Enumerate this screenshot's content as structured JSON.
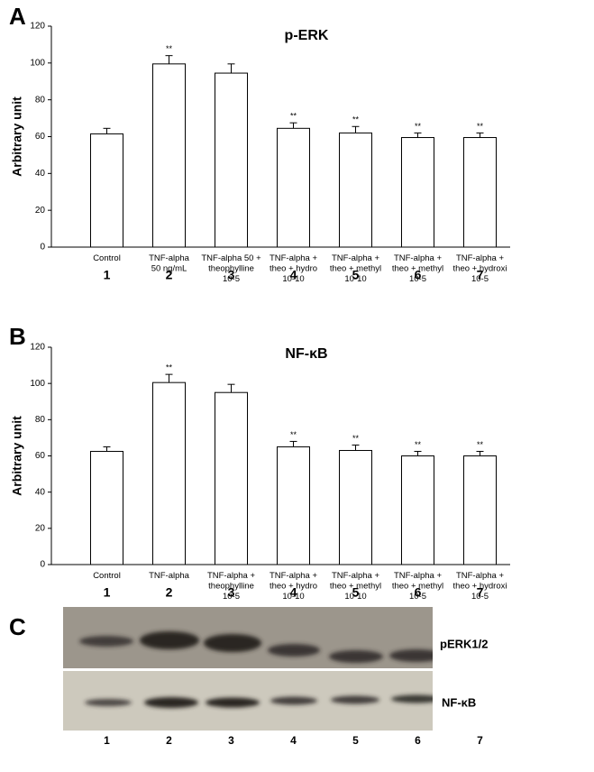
{
  "chart_data": [
    {
      "type": "bar",
      "panel": "A",
      "title": "p-ERK",
      "ylabel": "Arbitrary unit",
      "categories": [
        [
          "Control"
        ],
        [
          "TNF-alpha",
          "50 ng/mL"
        ],
        [
          "TNF-alpha 50 +",
          "theophylline",
          "10-5"
        ],
        [
          "TNF-alpha +",
          "theo + hydro",
          "10-10"
        ],
        [
          "TNF-alpha +",
          "theo + methyl",
          "10-10"
        ],
        [
          "TNF-alpha +",
          "theo + methyl",
          "10-5"
        ],
        [
          "TNF-alpha +",
          "theo + hydroxi",
          "10-5"
        ]
      ],
      "lane_labels": [
        "1",
        "2",
        "3",
        "4",
        "5",
        "6",
        "7"
      ],
      "values": [
        61.5,
        99.5,
        94.5,
        64.5,
        62,
        59.5,
        59.5
      ],
      "errors": [
        3,
        4.5,
        5,
        3,
        3.5,
        2.5,
        2.5
      ],
      "annotations": [
        null,
        "**",
        null,
        "**",
        "**",
        "**",
        "**"
      ],
      "color": "#ffffff",
      "ylim": [
        0,
        120
      ],
      "yticks": [
        0,
        20,
        40,
        60,
        80,
        100,
        120
      ]
    },
    {
      "type": "bar",
      "panel": "B",
      "title": "NF-κB",
      "ylabel": "Arbitrary unit",
      "categories": [
        [
          "Control"
        ],
        [
          "TNF-alpha"
        ],
        [
          "TNF-alpha +",
          "theophylline",
          "10-5"
        ],
        [
          "TNF-alpha +",
          "theo + hydro",
          "10-10"
        ],
        [
          "TNF-alpha +",
          "theo + methyl",
          "10-10"
        ],
        [
          "TNF-alpha +",
          "theo + methyl",
          "10-5"
        ],
        [
          "TNF-alpha +",
          "theo + hydroxi",
          "10-5"
        ]
      ],
      "lane_labels": [
        "1",
        "2",
        "3",
        "4",
        "5",
        "6",
        "7"
      ],
      "values": [
        62.5,
        100.5,
        95,
        65,
        63,
        60,
        60
      ],
      "errors": [
        2.5,
        4.5,
        4.5,
        3,
        3,
        2.5,
        2.5
      ],
      "annotations": [
        null,
        "**",
        null,
        "**",
        "**",
        "**",
        "**"
      ],
      "color": "#ffffff",
      "ylim": [
        0,
        120
      ],
      "yticks": [
        0,
        20,
        40,
        60,
        80,
        100,
        120
      ]
    }
  ],
  "blot": {
    "panel": "C",
    "labels": [
      "pERK1/2",
      "NF-κB"
    ],
    "lanes": [
      "1",
      "2",
      "3",
      "4",
      "5",
      "6",
      "7"
    ]
  }
}
